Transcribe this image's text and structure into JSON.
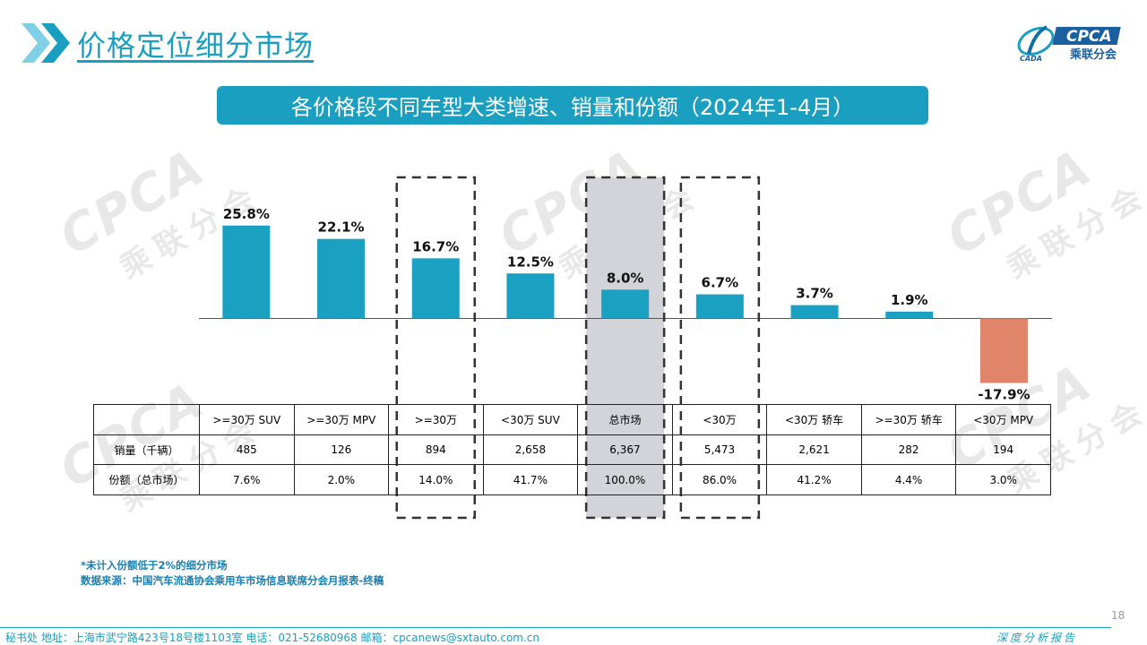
{
  "header": {
    "title": "价格定位细分市场",
    "logo_text": "CPCA",
    "logo_sub": "乘联分会",
    "logo_mark": "CADA"
  },
  "banner": {
    "title": "各价格段不同车型大类增速、销量和份额（2024年1-4月）"
  },
  "colors": {
    "accent": "#1a9fc0",
    "positive": "#1aa0c1",
    "negative": "#e0856a",
    "highlight": "#d3d3da"
  },
  "chart_data": {
    "type": "bar",
    "categories": [
      ">=30万 SUV",
      ">=30万 MPV",
      ">=30万",
      "<30万 SUV",
      "总市场",
      "<30万",
      "<30万 轿车",
      ">=30万 轿车",
      "<30万 MPV"
    ],
    "values": [
      25.8,
      22.1,
      16.7,
      12.5,
      8.0,
      6.7,
      3.7,
      1.9,
      -17.9
    ],
    "labels": [
      "25.8%",
      "22.1%",
      "16.7%",
      "12.5%",
      "8.0%",
      "6.7%",
      "3.7%",
      "1.9%",
      "-17.9%"
    ],
    "unit": "%",
    "ylim": [
      -20,
      30
    ],
    "highlight_dashed": [
      2,
      4,
      5
    ],
    "highlight_filled": [
      4
    ]
  },
  "table": {
    "headers": [
      ">=30万 SUV",
      ">=30万 MPV",
      ">=30万",
      "<30万 SUV",
      "总市场",
      "<30万",
      "<30万 轿车",
      ">=30万 轿车",
      "<30万 MPV"
    ],
    "rows": [
      {
        "label": "销量（千辆）",
        "cells": [
          "485",
          "126",
          "894",
          "2,658",
          "6,367",
          "5,473",
          "2,621",
          "282",
          "194"
        ]
      },
      {
        "label": "份额（总市场）",
        "cells": [
          "7.6%",
          "2.0%",
          "14.0%",
          "41.7%",
          "100.0%",
          "86.0%",
          "41.2%",
          "4.4%",
          "3.0%"
        ]
      }
    ]
  },
  "notes": {
    "line1": "*未计入份额低于2%的细分市场",
    "line2": "数据来源：中国汽车流通协会乘用车市场信息联席分会月报表-终稿"
  },
  "footer": {
    "address": "秘书处   地址：上海市武宁路423号18号楼1103室    电话：021-52680968    邮箱：cpcanews@sxtauto.com.cn",
    "tag": "深度分析报告",
    "page_number": "18"
  },
  "watermark": {
    "text": "CPCA",
    "sub": "乘联分会"
  }
}
